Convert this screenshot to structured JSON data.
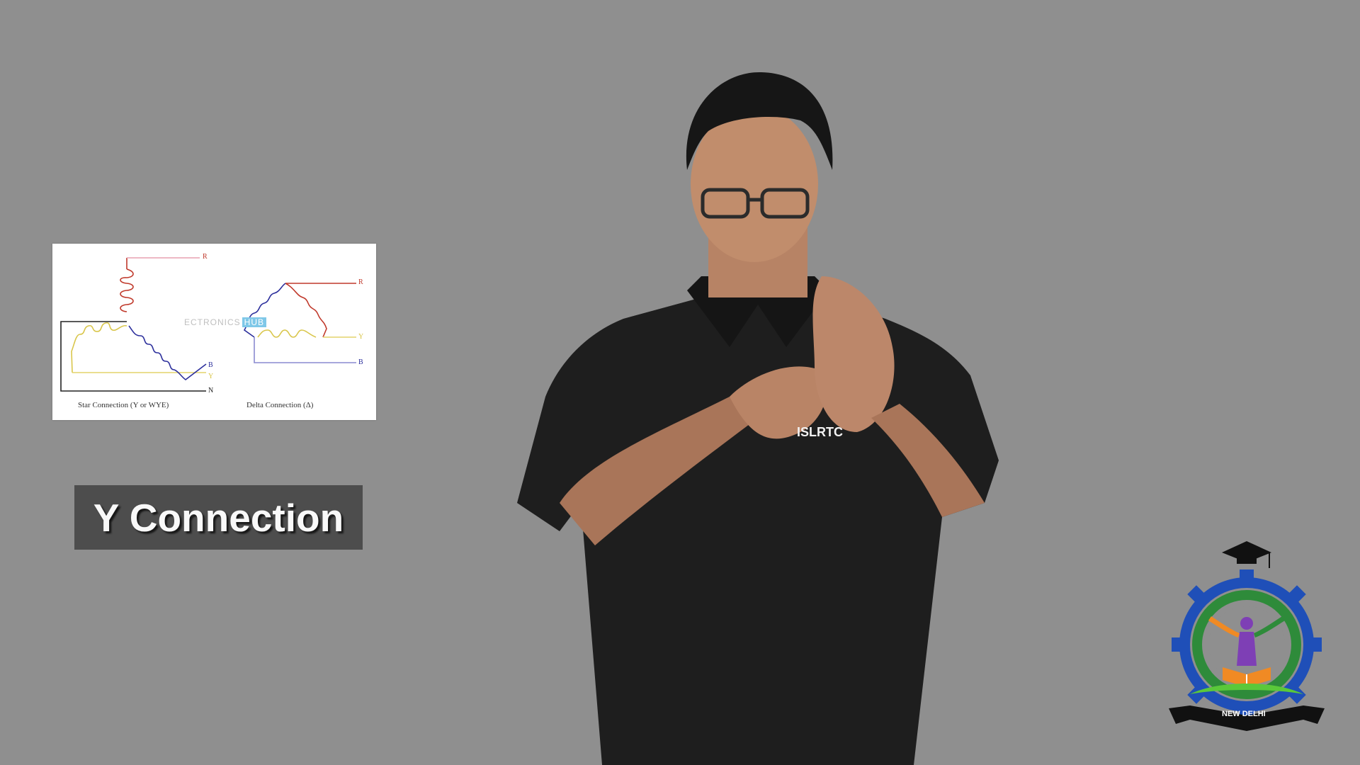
{
  "diagram": {
    "star_caption": "Star Connection (Y or WYE)",
    "delta_caption": "Delta Connection (Δ)",
    "watermark_left": "ECTRONICS",
    "watermark_right": "HUB",
    "star_terminals": {
      "r": "R",
      "b": "B",
      "y": "Y",
      "n": "N"
    },
    "delta_terminals": {
      "r": "R",
      "y": "Y",
      "b": "B"
    }
  },
  "title": "Y Connection",
  "shirt_logo": "ISLRTC",
  "logo": {
    "city": "NEW DELHI"
  },
  "colors": {
    "background": "#8f8f8f",
    "red_phase": "#c0392b",
    "yellow_phase": "#e3d36b",
    "blue_phase": "#2c2f9c",
    "title_box": "#4a4a4a"
  }
}
